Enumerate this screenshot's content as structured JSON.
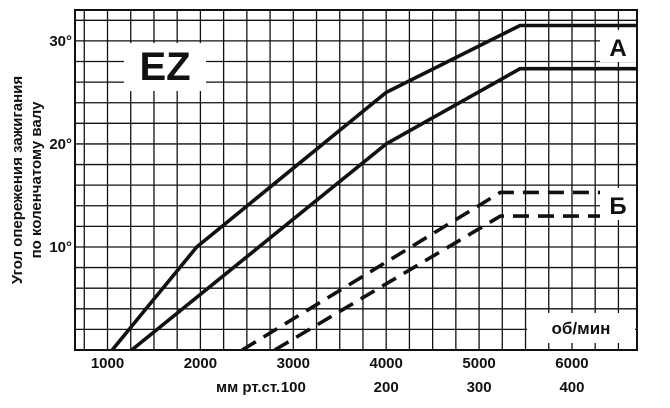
{
  "chart_data": {
    "type": "line",
    "title": "EZ",
    "ylabel": [
      "Угол опережения зажигания",
      "по коленчатому валу"
    ],
    "x_unit_label": "об/мин",
    "x_ticks": [
      1000,
      2000,
      3000,
      4000,
      5000,
      6000
    ],
    "x2_label": "мм рт.ст.",
    "x2_ticks": [
      {
        "at_rpm": 3000,
        "label": "100"
      },
      {
        "at_rpm": 4000,
        "label": "200"
      },
      {
        "at_rpm": 5000,
        "label": "300"
      },
      {
        "at_rpm": 6000,
        "label": "400"
      }
    ],
    "y_ticks": [
      {
        "value": 10,
        "label": "10°"
      },
      {
        "value": 20,
        "label": "20°"
      },
      {
        "value": 30,
        "label": "30°"
      }
    ],
    "xlim": [
      650,
      6700
    ],
    "ylim": [
      0,
      33
    ],
    "grid": true,
    "series": [
      {
        "name": "A",
        "style": "solid",
        "x": [
          1050,
          1960,
          4000,
          5440,
          6700
        ],
        "y": [
          0,
          10,
          25,
          31.5,
          31.5
        ]
      },
      {
        "name": "",
        "style": "solid",
        "x": [
          1260,
          4000,
          5440,
          6700
        ],
        "y": [
          0,
          20,
          27.3,
          27.3
        ]
      },
      {
        "name": "Б",
        "style": "dashed",
        "x": [
          2450,
          5230,
          5720,
          6700
        ],
        "y": [
          0,
          15.3,
          15.3,
          15.3
        ]
      },
      {
        "name": "",
        "style": "dashed",
        "x": [
          2800,
          5230,
          5720,
          6700
        ],
        "y": [
          0,
          13,
          13,
          13
        ]
      }
    ],
    "series_labels": [
      "А",
      "Б"
    ]
  },
  "colors": {
    "ink": "#111111",
    "background": "#ffffff",
    "badge": "#ffffff"
  }
}
